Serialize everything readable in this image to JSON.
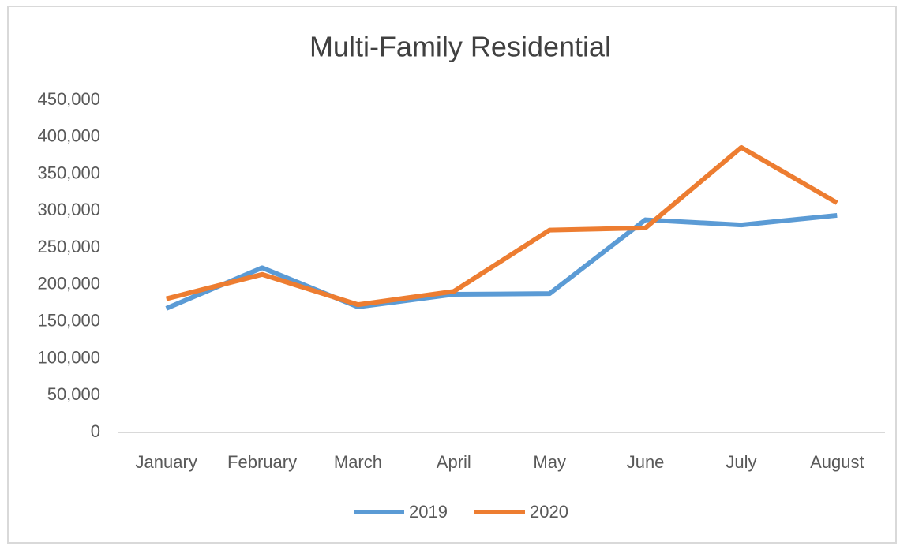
{
  "chart_data": {
    "type": "line",
    "title": "Multi-Family Residential",
    "categories": [
      "January",
      "February",
      "March",
      "April",
      "May",
      "June",
      "July",
      "August"
    ],
    "series": [
      {
        "name": "2019",
        "color": "#5b9bd5",
        "values": [
          168000,
          223000,
          170000,
          187000,
          188000,
          288000,
          281000,
          294000
        ]
      },
      {
        "name": "2020",
        "color": "#ed7d31",
        "values": [
          181000,
          214000,
          173000,
          191000,
          274000,
          277000,
          386000,
          311000
        ]
      }
    ],
    "ylim": [
      0,
      450000
    ],
    "yticks": [
      0,
      {
        "value": 50000,
        "label": "50,000"
      },
      {
        "value": 100000,
        "label": "100,000"
      },
      {
        "value": 150000,
        "label": "150,000"
      },
      {
        "value": 200000,
        "label": "200,000"
      },
      {
        "value": 250000,
        "label": "250,000"
      },
      {
        "value": 300000,
        "label": "300,000"
      },
      {
        "value": 350000,
        "label": "350,000"
      },
      {
        "value": 400000,
        "label": "400,000"
      },
      {
        "value": 450000,
        "label": "450,000"
      }
    ],
    "grid": false,
    "legend": "bottom"
  }
}
